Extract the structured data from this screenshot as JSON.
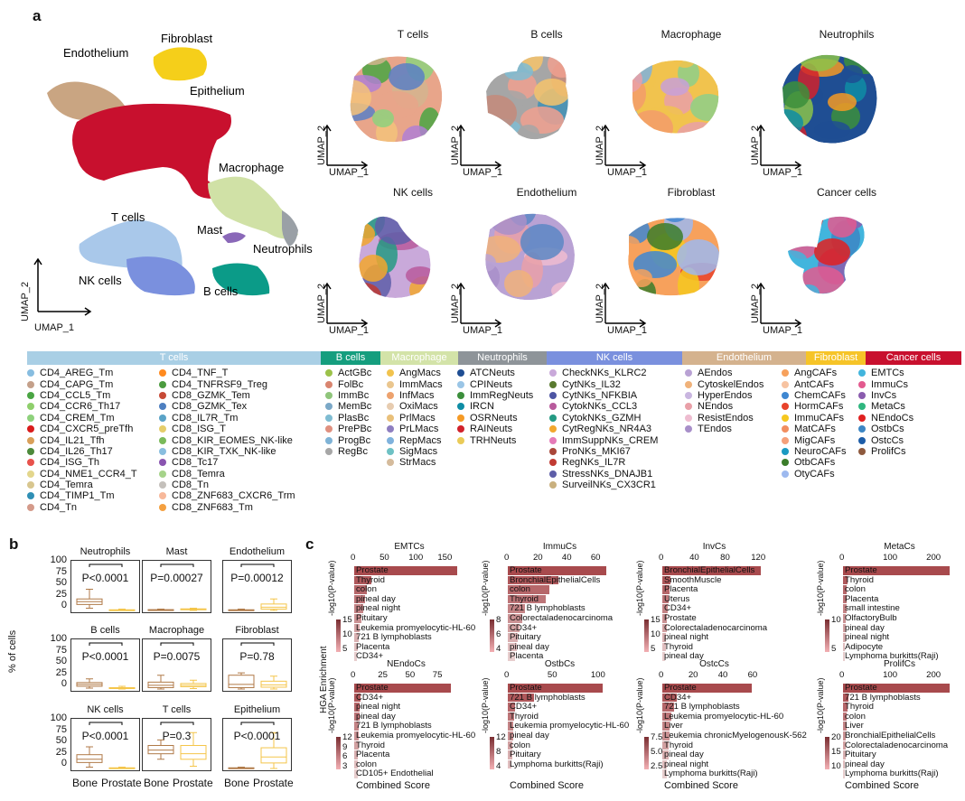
{
  "panels": {
    "a": "a",
    "b": "b",
    "c": "c"
  },
  "umap_axis": {
    "x": "UMAP_1",
    "y": "UMAP_2"
  },
  "main_umap": {
    "labels": [
      "Endothelium",
      "Fibroblast",
      "Epithelium",
      "Macrophage",
      "T cells",
      "Mast",
      "Neutrophils",
      "NK cells",
      "B cells"
    ],
    "colors": {
      "Endothelium": "#c9a582",
      "Fibroblast": "#f5cf1a",
      "Epithelium": "#c8102e",
      "Macrophage": "#d0e1a6",
      "T cells": "#a9c8ea",
      "Mast": "#8a68b8",
      "Neutrophils": "#9aa0a6",
      "NK cells": "#7a90de",
      "B cells": "#0b9b88"
    }
  },
  "subumaps": [
    "T cells",
    "B cells",
    "Macrophage",
    "Neutrophils",
    "NK cells",
    "Endothelium",
    "Fibroblast",
    "Cancer cells"
  ],
  "legend": {
    "headers": [
      {
        "label": "T cells",
        "color": "#a9cfe5"
      },
      {
        "label": "B cells",
        "color": "#159e7e"
      },
      {
        "label": "Macrophage",
        "color": "#d3e3a8"
      },
      {
        "label": "Neutrophils",
        "color": "#8e9499"
      },
      {
        "label": "NK cells",
        "color": "#7a90de"
      },
      {
        "label": "Endothelium",
        "color": "#d4b28e"
      },
      {
        "label": "Fibroblast",
        "color": "#f6c428"
      },
      {
        "label": "Cancer cells",
        "color": "#c8102e"
      }
    ],
    "columns": [
      [
        [
          "CD4_AREG_Tm",
          "#87bde0"
        ],
        [
          "CD4_CAPG_Tm",
          "#c4a08a"
        ],
        [
          "CD4_CCL5_Tm",
          "#4aa543"
        ],
        [
          "CD4_CCR6_Th17",
          "#8fcf6c"
        ],
        [
          "CD4_CREM_Tm",
          "#8ed17c"
        ],
        [
          "CD4_CXCR5_preTfh",
          "#d91c1c"
        ],
        [
          "CD4_IL21_Tfh",
          "#d9a05a"
        ],
        [
          "CD4_IL26_Th17",
          "#4d8a3b"
        ],
        [
          "CD4_ISG_Th",
          "#e8524c"
        ],
        [
          "CD4_NME1_CCR4_T",
          "#e3d68c"
        ],
        [
          "CD4_Temra",
          "#d8c68f"
        ],
        [
          "CD4_TIMP1_Tm",
          "#2f8fb5"
        ],
        [
          "CD4_Tn",
          "#d49a8a"
        ]
      ],
      [
        [
          "CD4_TNF_T",
          "#ff8a1f"
        ],
        [
          "CD4_TNFRSF9_Treg",
          "#4b9b3f"
        ],
        [
          "CD8_GZMK_Tem",
          "#c74a36"
        ],
        [
          "CD8_GZMK_Tex",
          "#4d7fc0"
        ],
        [
          "CD8_IL7R_Tm",
          "#5aa3c7"
        ],
        [
          "CD8_ISG_T",
          "#e5cd6a"
        ],
        [
          "CD8_KIR_EOMES_NK-like",
          "#7aba5a"
        ],
        [
          "CD8_KIR_TXK_NK-like",
          "#89bedf"
        ],
        [
          "CD8_Tc17",
          "#8a55b0"
        ],
        [
          "CD8_Temra",
          "#a6d38a"
        ],
        [
          "CD8_Tn",
          "#c4c0bb"
        ],
        [
          "CD8_ZNF683_CXCR6_Trm",
          "#f7b89a"
        ],
        [
          "CD8_ZNF683_Tm",
          "#f4a040"
        ]
      ],
      [
        [
          "ActGBc",
          "#9cc24a"
        ],
        [
          "FolBc",
          "#d9856f"
        ],
        [
          "ImmBc",
          "#8fc57b"
        ],
        [
          "MemBc",
          "#7ba8c7"
        ],
        [
          "PlasBc",
          "#7fbcd2"
        ],
        [
          "PrePBc",
          "#e0907f"
        ],
        [
          "ProgBc",
          "#7fb3d6"
        ],
        [
          "RegBc",
          "#a6a6a6"
        ]
      ],
      [
        [
          "AngMacs",
          "#f1c34e"
        ],
        [
          "ImmMacs",
          "#eac68e"
        ],
        [
          "InfMacs",
          "#eda26e"
        ],
        [
          "OxiMacs",
          "#e7ccb0"
        ],
        [
          "PrlMacs",
          "#e9c07a"
        ],
        [
          "PrLMacs",
          "#8e7ec0"
        ],
        [
          "RepMacs",
          "#7fb2dd"
        ],
        [
          "SigMacs",
          "#6ec1c4"
        ],
        [
          "StrMacs",
          "#d5bb9c"
        ]
      ],
      [
        [
          "ATCNeuts",
          "#1f4e93"
        ],
        [
          "CPINeuts",
          "#9ac5e6"
        ],
        [
          "ImmRegNeuts",
          "#3c8f3c"
        ],
        [
          "IRCN",
          "#0f8da5"
        ],
        [
          "OSRNeuts",
          "#f59a25"
        ],
        [
          "RAINeuts",
          "#d1222b"
        ],
        [
          "TRHNeuts",
          "#eacb58"
        ]
      ],
      [
        [
          "CheckNKs_KLRC2",
          "#c9a9da"
        ],
        [
          "CytNKs_IL32",
          "#5a7a2f"
        ],
        [
          "CytNKs_NFKBIA",
          "#4d55a3"
        ],
        [
          "CytokNKs_CCL3",
          "#b85a9c"
        ],
        [
          "CytokNKs_GZMH",
          "#249a83"
        ],
        [
          "CytRegNKs_NR4A3",
          "#f2a72e"
        ],
        [
          "ImmSuppNKs_CREM",
          "#e57bb8"
        ],
        [
          "ProNKs_MKI67",
          "#a9473a"
        ],
        [
          "RegNKs_IL7R",
          "#c13b33"
        ],
        [
          "StressNKs_DNAJB1",
          "#5e5ea8"
        ],
        [
          "SurveilNKs_CX3CR1",
          "#c9b07e"
        ]
      ],
      [
        [
          "AEndos",
          "#b9a2d4"
        ],
        [
          "CytoskelEndos",
          "#f0b27a"
        ],
        [
          "HyperEndos",
          "#c9b6e0"
        ],
        [
          "NEndos",
          "#e9a0a8"
        ],
        [
          "ResistEndos",
          "#eebcd0"
        ],
        [
          "TEndos",
          "#a88fc9"
        ]
      ],
      [
        [
          "AngCAFs",
          "#f7a15c"
        ],
        [
          "AntCAFs",
          "#f7c3a1"
        ],
        [
          "ChemCAFs",
          "#3f87d1"
        ],
        [
          "HormCAFs",
          "#e8432b"
        ],
        [
          "ImmuCAFs",
          "#f6c81f"
        ],
        [
          "MatCAFs",
          "#f28e5f"
        ],
        [
          "MigCAFs",
          "#f5a07a"
        ],
        [
          "NeuroCAFs",
          "#1b9ac2"
        ],
        [
          "OtbCAFs",
          "#3b7d2a"
        ],
        [
          "OtyCAFs",
          "#9db9ef"
        ]
      ],
      [
        [
          "EMTCs",
          "#42b5dd"
        ],
        [
          "ImmuCs",
          "#e35a8f"
        ],
        [
          "InvCs",
          "#8a5cae"
        ],
        [
          "MetaCs",
          "#2fb67f"
        ],
        [
          "NEndoCs",
          "#e02020"
        ],
        [
          "OstbCs",
          "#3c86c4"
        ],
        [
          "OstcCs",
          "#1d5da8"
        ],
        [
          "ProlifCs",
          "#8e5a3e"
        ]
      ]
    ]
  },
  "boxplots": {
    "ylabel": "% of cells",
    "yticks": [
      "100",
      "75",
      "50",
      "25",
      "0"
    ],
    "xlabels": [
      "Bone",
      "Prostate"
    ],
    "bone_color": "#b07a48",
    "prostate_color": "#f4c54a",
    "panels": [
      {
        "title": "Neutrophils",
        "p": "P<0.0001",
        "bone": [
          5,
          13,
          19,
          25,
          46
        ],
        "prostate": [
          0,
          0.3,
          0.8,
          1.5,
          3
        ]
      },
      {
        "title": "Mast",
        "p": "P=0.00027",
        "bone": [
          0,
          0.5,
          1,
          1.8,
          3
        ],
        "prostate": [
          0,
          1.5,
          2.5,
          3.5,
          5
        ]
      },
      {
        "title": "Endothelium",
        "p": "P=0.00012",
        "bone": [
          0,
          0.5,
          1,
          1.5,
          3
        ],
        "prostate": [
          0,
          3,
          7,
          14,
          25
        ]
      },
      {
        "title": "B cells",
        "p": "P<0.0001",
        "bone": [
          2,
          6,
          10,
          14,
          22
        ],
        "prostate": [
          0,
          1,
          2,
          3,
          6
        ]
      },
      {
        "title": "Macrophage",
        "p": "P=0.0075",
        "bone": [
          0,
          3,
          8,
          15,
          30
        ],
        "prostate": [
          1,
          5,
          8,
          12,
          19
        ]
      },
      {
        "title": "Fibroblast",
        "p": "P=0.78",
        "bone": [
          0,
          3,
          10,
          30,
          35
        ],
        "prostate": [
          0,
          4,
          9,
          17,
          28
        ]
      },
      {
        "title": "NK cells",
        "p": "P<0.0001",
        "bone": [
          3,
          13,
          20,
          30,
          47
        ],
        "prostate": [
          0,
          0.3,
          1,
          1.5,
          3
        ]
      },
      {
        "title": "T cells",
        "p": "P=0.3",
        "bone": [
          20,
          32,
          40,
          50,
          62
        ],
        "prostate": [
          5,
          20,
          32,
          50,
          78
        ]
      },
      {
        "title": "Epithelium",
        "p": "P<0.0001",
        "bone": [
          0,
          0.5,
          1,
          1.5,
          3
        ],
        "prostate": [
          0,
          12,
          25,
          45,
          78
        ]
      }
    ]
  },
  "enrichment": {
    "ylabel": "HGA Enrichment",
    "xlabel": "Combined Score",
    "legend_title": "-log10(P-value)",
    "bar_color": "#a84a4d",
    "charts": [
      {
        "title": "EMTCs",
        "ticks": [
          0,
          50,
          100,
          150
        ],
        "xmax": 190,
        "terms": [
          "Prostate",
          "Thyroid",
          "colon",
          "pineal day",
          "pineal night",
          "Pituitary",
          "Leukemia promyelocytic-HL-60",
          "721 B lymphoblasts",
          "Placenta",
          "CD34+"
        ],
        "scores": [
          178,
          30,
          22,
          18,
          15,
          12,
          10,
          8,
          6,
          5
        ],
        "legend": [
          "15",
          "10",
          "5"
        ]
      },
      {
        "title": "ImmuCs",
        "ticks": [
          0,
          20,
          40,
          60
        ],
        "xmax": 72,
        "terms": [
          "Prostate",
          "BronchialEpithelialCells",
          "colon",
          "Thyroid",
          "721 B lymphoblasts",
          "Colorectaladenocarcinoma",
          "CD34+",
          "Pituitary",
          "pineal day",
          "Placenta"
        ],
        "scores": [
          68,
          35,
          29,
          26,
          12,
          10,
          8,
          7,
          6,
          5
        ],
        "legend": [
          "8",
          "6",
          "4"
        ]
      },
      {
        "title": "InvCs",
        "ticks": [
          0,
          40,
          80,
          120
        ],
        "xmax": 135,
        "terms": [
          "BronchialEpithelialCells",
          "SmoothMuscle",
          "Placenta",
          "Uterus",
          "CD34+",
          "Prostate",
          "Colorectaladenocarcinoma",
          "pineal night",
          "Thyroid",
          "pineal day"
        ],
        "scores": [
          128,
          10,
          9,
          8,
          7,
          6,
          6,
          5,
          5,
          4
        ],
        "legend": [
          "15",
          "10",
          "5"
        ]
      },
      {
        "title": "MetaCs",
        "ticks": [
          0,
          100,
          200
        ],
        "xmax": 260,
        "terms": [
          "Prostate",
          "Thyroid",
          "colon",
          "Placenta",
          "small intestine",
          "OlfactoryBulb",
          "pineal day",
          "pineal night",
          "Adipocyte",
          "Lymphoma burkitts(Raji)"
        ],
        "scores": [
          245,
          10,
          9,
          8,
          8,
          7,
          7,
          6,
          5,
          5
        ],
        "legend": [
          "10",
          "5"
        ]
      },
      {
        "title": "NEndoCs",
        "ticks": [
          0,
          25,
          50,
          75
        ],
        "xmax": 95,
        "terms": [
          "Prostate",
          "CD34+",
          "pineal night",
          "pineal day",
          "721 B lymphoblasts",
          "Leukemia promyelocytic-HL-60",
          "Thyroid",
          "Placenta",
          "colon",
          "CD105+ Endothelial"
        ],
        "scores": [
          88,
          6,
          5,
          5,
          4,
          4,
          4,
          3,
          3,
          3
        ],
        "legend": [
          "12",
          "9",
          "6",
          "3"
        ]
      },
      {
        "title": "OstbCs",
        "ticks": [
          0,
          50,
          100
        ],
        "xmax": 120,
        "terms": [
          "Prostate",
          "721 B lymphoblasts",
          "CD34+",
          "Thyroid",
          "Leukemia promyelocytic-HL-60",
          "pineal day",
          "colon",
          "Pituitary",
          "Lymphoma burkitts(Raji)"
        ],
        "scores": [
          110,
          30,
          8,
          7,
          6,
          6,
          5,
          5,
          4
        ],
        "legend": [
          "12",
          "8",
          "4"
        ]
      },
      {
        "title": "OstcCs",
        "ticks": [
          0,
          20,
          40,
          60
        ],
        "xmax": 70,
        "terms": [
          "Prostate",
          "CD34+",
          "721 B lymphoblasts",
          "Leukemia promyelocytic-HL-60",
          "Liver",
          "Leukemia chronicMyelogenousK-562",
          "Thyroid",
          "pineal day",
          "pineal night",
          "Lymphoma burkitts(Raji)"
        ],
        "scores": [
          60,
          10,
          8,
          6,
          5,
          5,
          4,
          4,
          3,
          3
        ],
        "legend": [
          "7.5",
          "5.0",
          "2.5"
        ]
      },
      {
        "title": "ProlifCs",
        "ticks": [
          0,
          100,
          200
        ],
        "xmax": 260,
        "terms": [
          "Prostate",
          "721 B lymphoblasts",
          "Thyroid",
          "colon",
          "Liver",
          "BronchialEpithelialCells",
          "Colorectaladenocarcinoma",
          "Pituitary",
          "pineal day",
          "Lymphoma burkitts(Raji)"
        ],
        "scores": [
          245,
          12,
          10,
          9,
          8,
          7,
          6,
          6,
          5,
          5
        ],
        "legend": [
          "20",
          "15",
          "10"
        ]
      }
    ]
  }
}
